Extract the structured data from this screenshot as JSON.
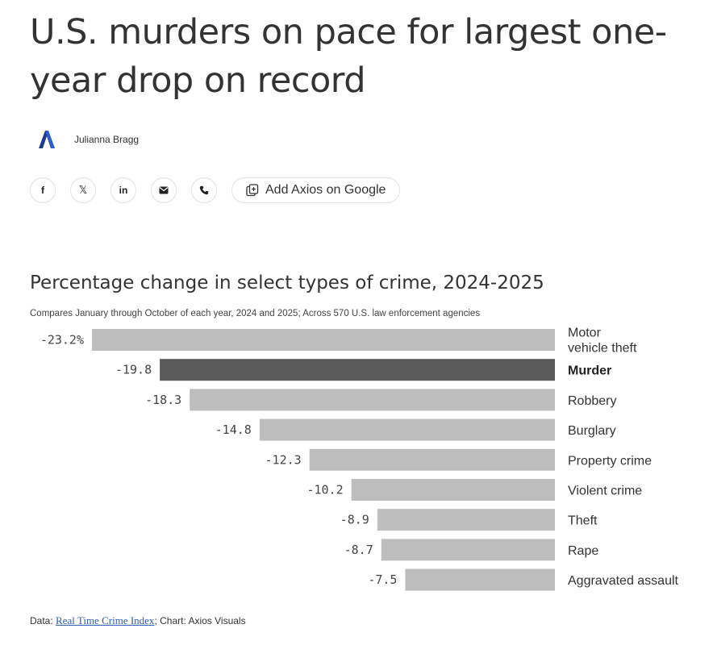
{
  "article": {
    "headline": "U.S. murders on pace for largest one-year drop on record",
    "author": "Julianna Bragg",
    "logo_icon": "axios-logo-icon",
    "brand_color": "#1a3b8f"
  },
  "share": {
    "buttons": [
      {
        "name": "facebook-icon",
        "glyph": "f"
      },
      {
        "name": "x-icon",
        "glyph": "𝕏"
      },
      {
        "name": "linkedin-icon",
        "glyph": "in"
      },
      {
        "name": "email-icon",
        "glyph": ""
      },
      {
        "name": "phone-icon",
        "glyph": ""
      }
    ],
    "google_label": "Add Axios on Google"
  },
  "chart_data": {
    "type": "bar",
    "orientation": "horizontal",
    "title": "Percentage change in select types of crime, 2024-2025",
    "subtitle": "Compares January through October of each year, 2024 and 2025; Across 570 U.S. law enforcement agencies",
    "categories": [
      "Motor vehicle theft",
      "Murder",
      "Robbery",
      "Burglary",
      "Property crime",
      "Violent crime",
      "Theft",
      "Rape",
      "Aggravated assault"
    ],
    "values": [
      -23.2,
      -19.8,
      -18.3,
      -14.8,
      -12.3,
      -10.2,
      -8.9,
      -8.7,
      -7.5
    ],
    "value_labels": [
      "-23.2%",
      "-19.8",
      "-18.3",
      "-14.8",
      "-12.3",
      "-10.2",
      "-8.9",
      "-8.7",
      "-7.5"
    ],
    "highlight": "Murder",
    "bar_color": "#bdbdbd",
    "highlight_color": "#5a5a5a",
    "xlim": [
      -23.2,
      0
    ],
    "legend": "none",
    "grid": false
  },
  "footer": {
    "data_prefix": "Data: ",
    "source_link": "Real Time Crime Index",
    "chart_credit": "; Chart: Axios Visuals"
  }
}
